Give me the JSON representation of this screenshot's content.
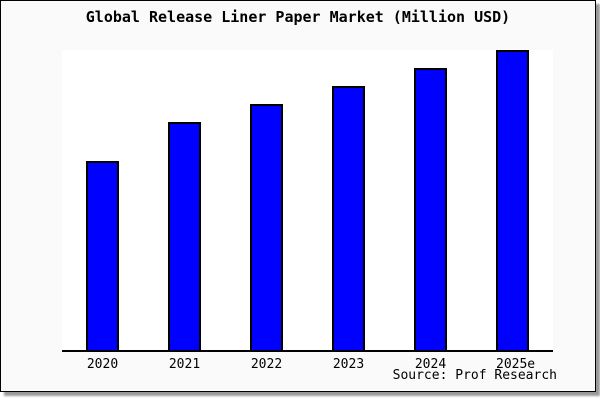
{
  "window": {
    "background_color": "#fafafa",
    "frame_border_color": "#000000",
    "shadow_color": "#999999",
    "plot_background_color": "#ffffff"
  },
  "chart": {
    "title": "Global Release Liner Paper Market (Million USD)",
    "source": "Source: Prof Research",
    "bar_color": "#0000ff",
    "bar_border_color": "#000000"
  },
  "chart_data": {
    "type": "bar",
    "title": "Global Release Liner Paper Market (Million USD)",
    "categories": [
      "2020",
      "2021",
      "2022",
      "2023",
      "2024",
      "2025e"
    ],
    "values": [
      63,
      76,
      82,
      88,
      94,
      100
    ],
    "value_basis": "relative bar heights, 2025e = 100 (no y-axis scale shown)",
    "xlabel": "",
    "ylabel": "",
    "ylim": [
      0,
      100
    ],
    "grid": false,
    "legend": false,
    "annotation": "Source: Prof Research"
  }
}
